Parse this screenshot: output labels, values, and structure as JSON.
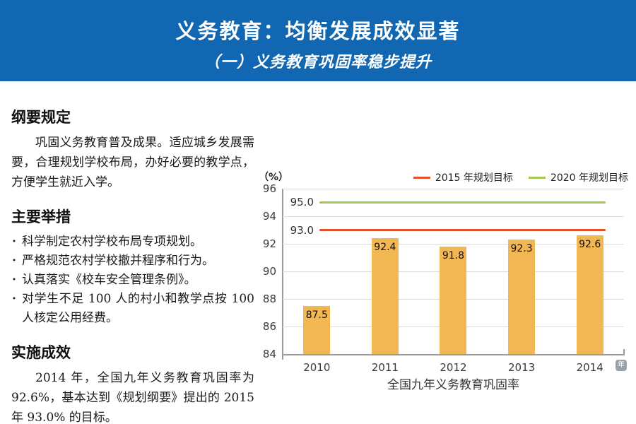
{
  "header": {
    "title": "义务教育：均衡发展成效显著",
    "subtitle": "（一）义务教育巩固率稳步提升",
    "bg_color": "#1267B2"
  },
  "sections": [
    {
      "heading": "纲要规定",
      "body": "巩固义务教育普及成果。适应城乡发展需要，合理规划学校布局，办好必要的教学点，方便学生就近入学。"
    },
    {
      "heading": "主要举措",
      "bullets": [
        "科学制定农村学校布局专项规划。",
        "严格规范农村学校撤并程序和行为。",
        "认真落实《校车安全管理条例》。",
        "对学生不足 100 人的村小和教学点按 100 人核定公用经费。"
      ]
    },
    {
      "heading": "实施成效",
      "body": "2014 年，全国九年义务教育巩固率为 92.6%，基本达到《规划纲要》提出的 2015 年 93.0% 的目标。"
    }
  ],
  "chart_data": {
    "type": "bar",
    "title": "全国九年义务教育巩固率",
    "unit_label": "（%）",
    "x_unit_badge": "年",
    "categories": [
      "2010",
      "2011",
      "2012",
      "2013",
      "2014"
    ],
    "values": [
      87.5,
      92.4,
      91.8,
      92.3,
      92.6
    ],
    "value_labels": [
      "87.5",
      "92.4",
      "91.8",
      "92.3",
      "92.6"
    ],
    "ylim": [
      84,
      96
    ],
    "yticks": [
      96,
      94,
      92,
      90,
      88,
      86,
      84
    ],
    "grid": true,
    "legend_position": "top-right",
    "bar_color": "#F1B753",
    "axis_color": "#9b9b9b",
    "grid_color": "#dcdcdc",
    "reference_lines": [
      {
        "label": "2015 年规划目标",
        "value": 93.0,
        "value_label": "93.0",
        "color": "#E2532D"
      },
      {
        "label": "2020 年规划目标",
        "value": 95.0,
        "value_label": "95.0",
        "color": "#A5C94F"
      }
    ]
  }
}
